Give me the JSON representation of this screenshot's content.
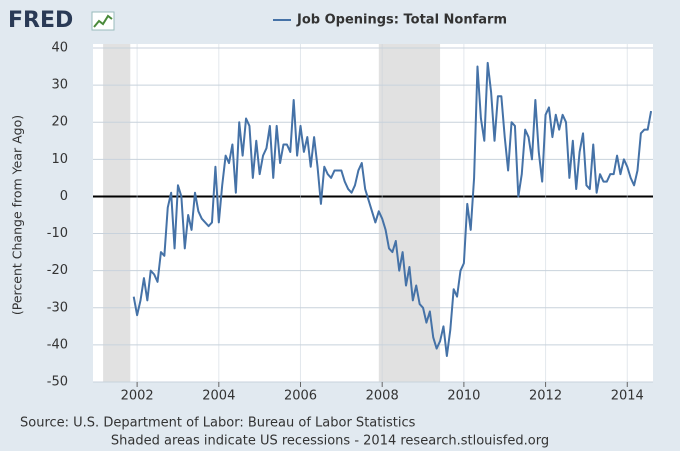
{
  "chart_data": {
    "type": "line",
    "logo": "FRED",
    "ylabel": "(Percent Change from Year Ago)",
    "source": "Source: U.S. Department of Labor: Bureau of Labor Statistics",
    "note": "Shaded areas indicate US recessions - 2014 research.stlouisfed.org",
    "xlim": [
      2000.92,
      2014.63
    ],
    "xticks": [
      2002,
      2004,
      2006,
      2008,
      2010,
      2012,
      2014
    ],
    "ylim": [
      -50,
      40
    ],
    "yticks": [
      -50,
      -40,
      -30,
      -20,
      -10,
      0,
      10,
      20,
      30,
      40
    ],
    "grid": true,
    "recessions": [
      [
        2001.167,
        2001.833
      ],
      [
        2007.917,
        2009.417
      ]
    ],
    "x": [
      2001.917,
      2002.0,
      2002.083,
      2002.167,
      2002.25,
      2002.333,
      2002.417,
      2002.5,
      2002.583,
      2002.667,
      2002.75,
      2002.833,
      2002.917,
      2003.0,
      2003.083,
      2003.167,
      2003.25,
      2003.333,
      2003.417,
      2003.5,
      2003.583,
      2003.667,
      2003.75,
      2003.833,
      2003.917,
      2004.0,
      2004.083,
      2004.167,
      2004.25,
      2004.333,
      2004.417,
      2004.5,
      2004.583,
      2004.667,
      2004.75,
      2004.833,
      2004.917,
      2005.0,
      2005.083,
      2005.167,
      2005.25,
      2005.333,
      2005.417,
      2005.5,
      2005.583,
      2005.667,
      2005.75,
      2005.833,
      2005.917,
      2006.0,
      2006.083,
      2006.167,
      2006.25,
      2006.333,
      2006.417,
      2006.5,
      2006.583,
      2006.667,
      2006.75,
      2006.833,
      2006.917,
      2007.0,
      2007.083,
      2007.167,
      2007.25,
      2007.333,
      2007.417,
      2007.5,
      2007.583,
      2007.667,
      2007.75,
      2007.833,
      2007.917,
      2008.0,
      2008.083,
      2008.167,
      2008.25,
      2008.333,
      2008.417,
      2008.5,
      2008.583,
      2008.667,
      2008.75,
      2008.833,
      2008.917,
      2009.0,
      2009.083,
      2009.167,
      2009.25,
      2009.333,
      2009.417,
      2009.5,
      2009.583,
      2009.667,
      2009.75,
      2009.833,
      2009.917,
      2010.0,
      2010.083,
      2010.167,
      2010.25,
      2010.333,
      2010.417,
      2010.5,
      2010.583,
      2010.667,
      2010.75,
      2010.833,
      2010.917,
      2011.0,
      2011.083,
      2011.167,
      2011.25,
      2011.333,
      2011.417,
      2011.5,
      2011.583,
      2011.667,
      2011.75,
      2011.833,
      2011.917,
      2012.0,
      2012.083,
      2012.167,
      2012.25,
      2012.333,
      2012.417,
      2012.5,
      2012.583,
      2012.667,
      2012.75,
      2012.833,
      2012.917,
      2013.0,
      2013.083,
      2013.167,
      2013.25,
      2013.333,
      2013.417,
      2013.5,
      2013.583,
      2013.667,
      2013.75,
      2013.833,
      2013.917,
      2014.0,
      2014.083,
      2014.167,
      2014.25,
      2014.333,
      2014.417,
      2014.5,
      2014.583
    ],
    "series": [
      {
        "name": "Job Openings: Total Nonfarm",
        "color": "#4572a7",
        "values": [
          -27,
          -32,
          -28,
          -22,
          -28,
          -20,
          -21,
          -23,
          -15,
          -16,
          -3,
          1,
          -14,
          3,
          0,
          -14,
          -5,
          -9,
          1,
          -4,
          -6,
          -7,
          -8,
          -7,
          8,
          -7,
          3,
          11,
          9,
          14,
          1,
          20,
          11,
          21,
          19,
          5,
          15,
          6,
          11,
          13,
          19,
          5,
          19,
          9,
          14,
          14,
          12,
          26,
          11,
          19,
          12,
          16,
          8,
          16,
          8,
          -2,
          8,
          6,
          5,
          7,
          7,
          7,
          4,
          2,
          1,
          3,
          7,
          9,
          2,
          -1,
          -4,
          -7,
          -4,
          -6,
          -9,
          -14,
          -15,
          -12,
          -20,
          -15,
          -24,
          -19,
          -28,
          -24,
          -29,
          -30,
          -34,
          -31,
          -38,
          -41,
          -39,
          -35,
          -43,
          -36,
          -25,
          -27,
          -20,
          -18,
          -2,
          -9,
          5,
          35,
          21,
          15,
          36,
          28,
          15,
          27,
          27,
          16,
          7,
          20,
          19,
          0,
          6,
          18,
          16,
          10,
          26,
          12,
          4,
          22,
          24,
          16,
          22,
          18,
          22,
          20,
          5,
          15,
          2,
          12,
          17,
          3,
          2,
          14,
          1,
          6,
          4,
          4,
          6,
          6,
          11,
          6,
          10,
          8,
          5,
          3,
          7,
          17,
          18,
          18,
          23
        ]
      }
    ]
  }
}
